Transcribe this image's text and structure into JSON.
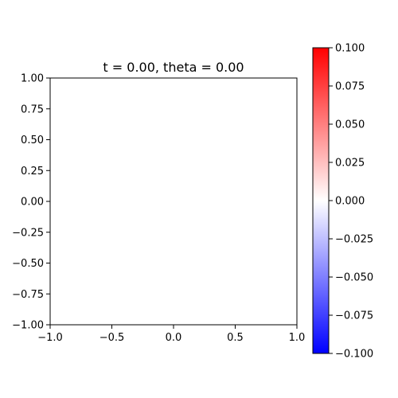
{
  "chart_data": {
    "type": "heatmap",
    "title": "t = 0.00, theta = 0.00",
    "xlabel": "",
    "ylabel": "",
    "xlim": [
      -1.0,
      1.0
    ],
    "ylim": [
      -1.0,
      1.0
    ],
    "x_ticks": [
      -1.0,
      -0.5,
      0.0,
      0.5,
      1.0
    ],
    "x_tick_labels": [
      "−1.0",
      "−0.5",
      "0.0",
      "0.5",
      "1.0"
    ],
    "y_ticks": [
      -1.0,
      -0.75,
      -0.5,
      -0.25,
      0.0,
      0.25,
      0.5,
      0.75,
      1.0
    ],
    "y_tick_labels": [
      "−1.00",
      "−0.75",
      "−0.50",
      "−0.25",
      "0.00",
      "0.25",
      "0.50",
      "0.75",
      "1.00"
    ],
    "field_value": 0.0,
    "colorbar": {
      "colormap": "bwr",
      "range": [
        -0.1,
        0.1
      ],
      "colors": {
        "low": "#0000ff",
        "mid": "#ffffff",
        "high": "#ff0000"
      },
      "ticks": [
        -0.1,
        -0.075,
        -0.05,
        -0.025,
        0.0,
        0.025,
        0.05,
        0.075,
        0.1
      ],
      "tick_labels": [
        "−0.100",
        "−0.075",
        "−0.050",
        "−0.025",
        "0.000",
        "0.025",
        "0.050",
        "0.075",
        "0.100"
      ]
    },
    "grid": false,
    "legend": "none"
  }
}
